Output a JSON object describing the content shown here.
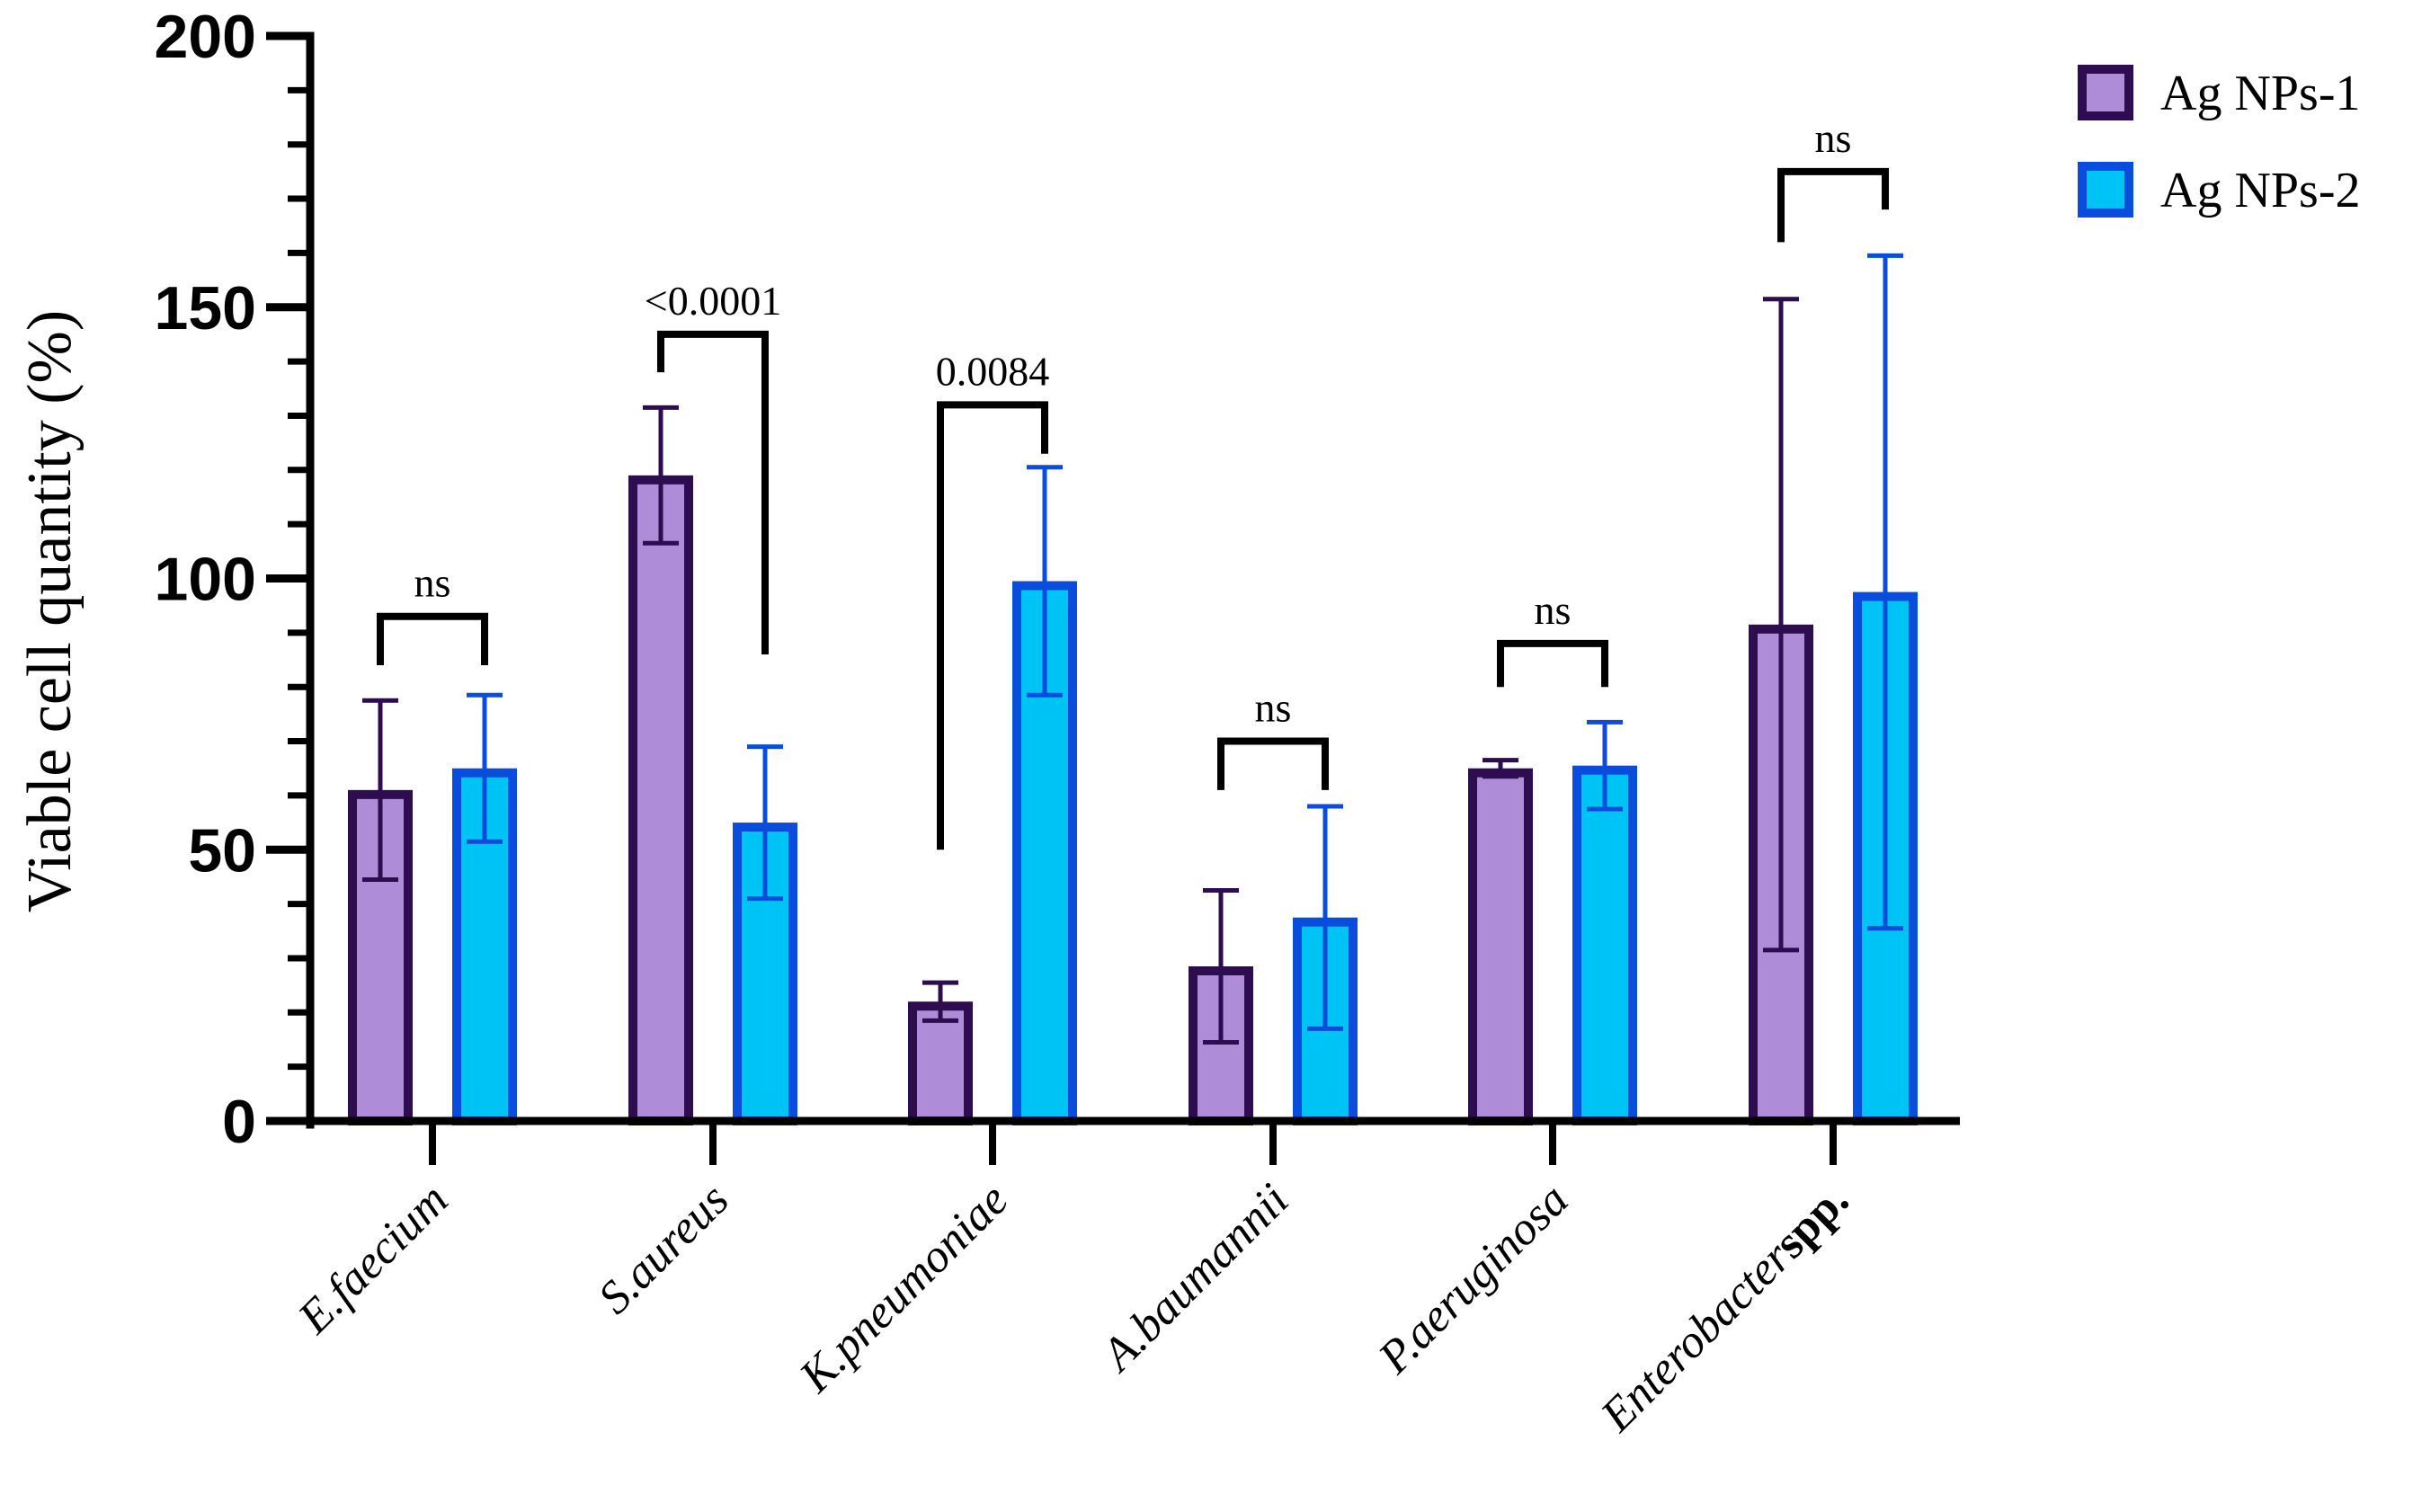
{
  "chart_data": {
    "type": "bar",
    "title": "",
    "xlabel": "",
    "ylabel": "Viable cell quantity (%)",
    "ylim": [
      0,
      200
    ],
    "yticks": [
      "0",
      "50",
      "100",
      "150",
      "200"
    ],
    "categories": [
      {
        "main": "E.faecium",
        "suffix": ""
      },
      {
        "main": "S.aureus",
        "suffix": ""
      },
      {
        "main": "K.pneumoniae",
        "suffix": ""
      },
      {
        "main": "A.baumannii",
        "suffix": ""
      },
      {
        "main": "P.aeruginosa",
        "suffix": ""
      },
      {
        "main": "Enterobacter",
        "suffix": "spp."
      }
    ],
    "series": [
      {
        "name": "Ag NPs-1",
        "values": [
          61,
          119,
          22,
          28.5,
          65,
          91.5
        ],
        "errors": [
          16.5,
          12.5,
          3.5,
          14,
          1.5,
          60
        ],
        "border_color": "#2d0c50",
        "fill_color": "#af8cd8"
      },
      {
        "name": "Ag NPs-2",
        "values": [
          65,
          55,
          99.5,
          37.5,
          65.5,
          97.5
        ],
        "errors": [
          13.5,
          14,
          21,
          20.5,
          8,
          62
        ],
        "border_color": "#0a4ddc",
        "fill_color": "#00c3f5"
      }
    ],
    "comparisons": [
      {
        "label": "ns",
        "y": 93,
        "left_end": 84,
        "right_end": 84
      },
      {
        "label": "<0.0001",
        "y": 145,
        "left_end": 138,
        "right_end": 86
      },
      {
        "label": "0.0084",
        "y": 132,
        "left_end": 50,
        "right_end": 123
      },
      {
        "label": "ns",
        "y": 70,
        "left_end": 61,
        "right_end": 61
      },
      {
        "label": "ns",
        "y": 88,
        "left_end": 80,
        "right_end": 80
      },
      {
        "label": "ns",
        "y": 175,
        "left_end": 162,
        "right_end": 168
      }
    ],
    "legend": "top-right"
  }
}
